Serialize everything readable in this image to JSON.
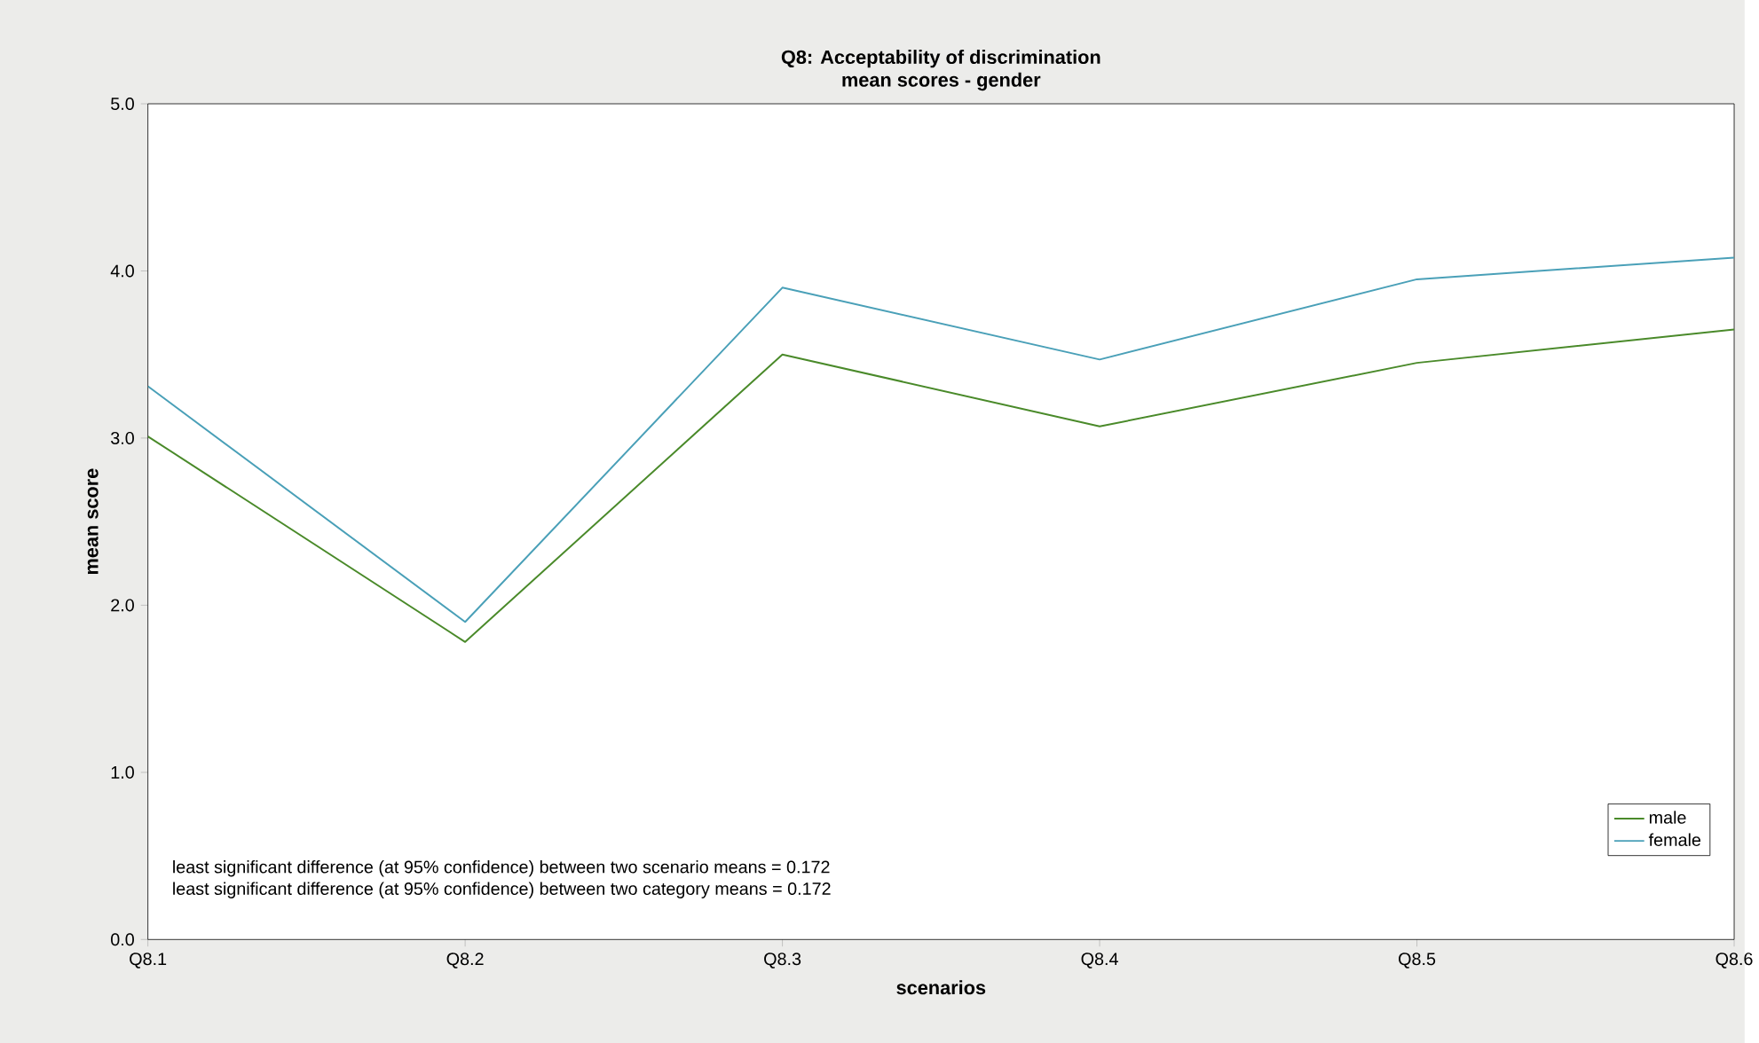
{
  "chart_data": {
    "type": "line",
    "title": "Q8: Acceptability of discrimination",
    "subtitle": "mean scores - gender",
    "xlabel": "scenarios",
    "ylabel": "mean score",
    "categories": [
      "Q8.1",
      "Q8.2",
      "Q8.3",
      "Q8.4",
      "Q8.5",
      "Q8.6"
    ],
    "series": [
      {
        "name": "male",
        "color": "#4a8a2a",
        "values": [
          3.01,
          1.78,
          3.5,
          3.07,
          3.45,
          3.65
        ]
      },
      {
        "name": "female",
        "color": "#4aa0b8",
        "values": [
          3.31,
          1.9,
          3.9,
          3.47,
          3.95,
          4.08
        ]
      }
    ],
    "ylim": [
      0,
      5
    ],
    "yticks": [
      {
        "value": 0,
        "label": "0.0"
      },
      {
        "value": 1,
        "label": "1.0"
      },
      {
        "value": 2,
        "label": "2.0"
      },
      {
        "value": 3,
        "label": "3.0"
      },
      {
        "value": 4,
        "label": "4.0"
      },
      {
        "value": 5,
        "label": "5.0"
      }
    ],
    "annotations": [
      "least significant difference (at 95% confidence) between two scenario means = 0.172",
      "least significant difference (at 95% confidence) between two category means = 0.172"
    ],
    "legend": "bottom right",
    "grid": false,
    "marker": "none",
    "line_style": "solid"
  }
}
